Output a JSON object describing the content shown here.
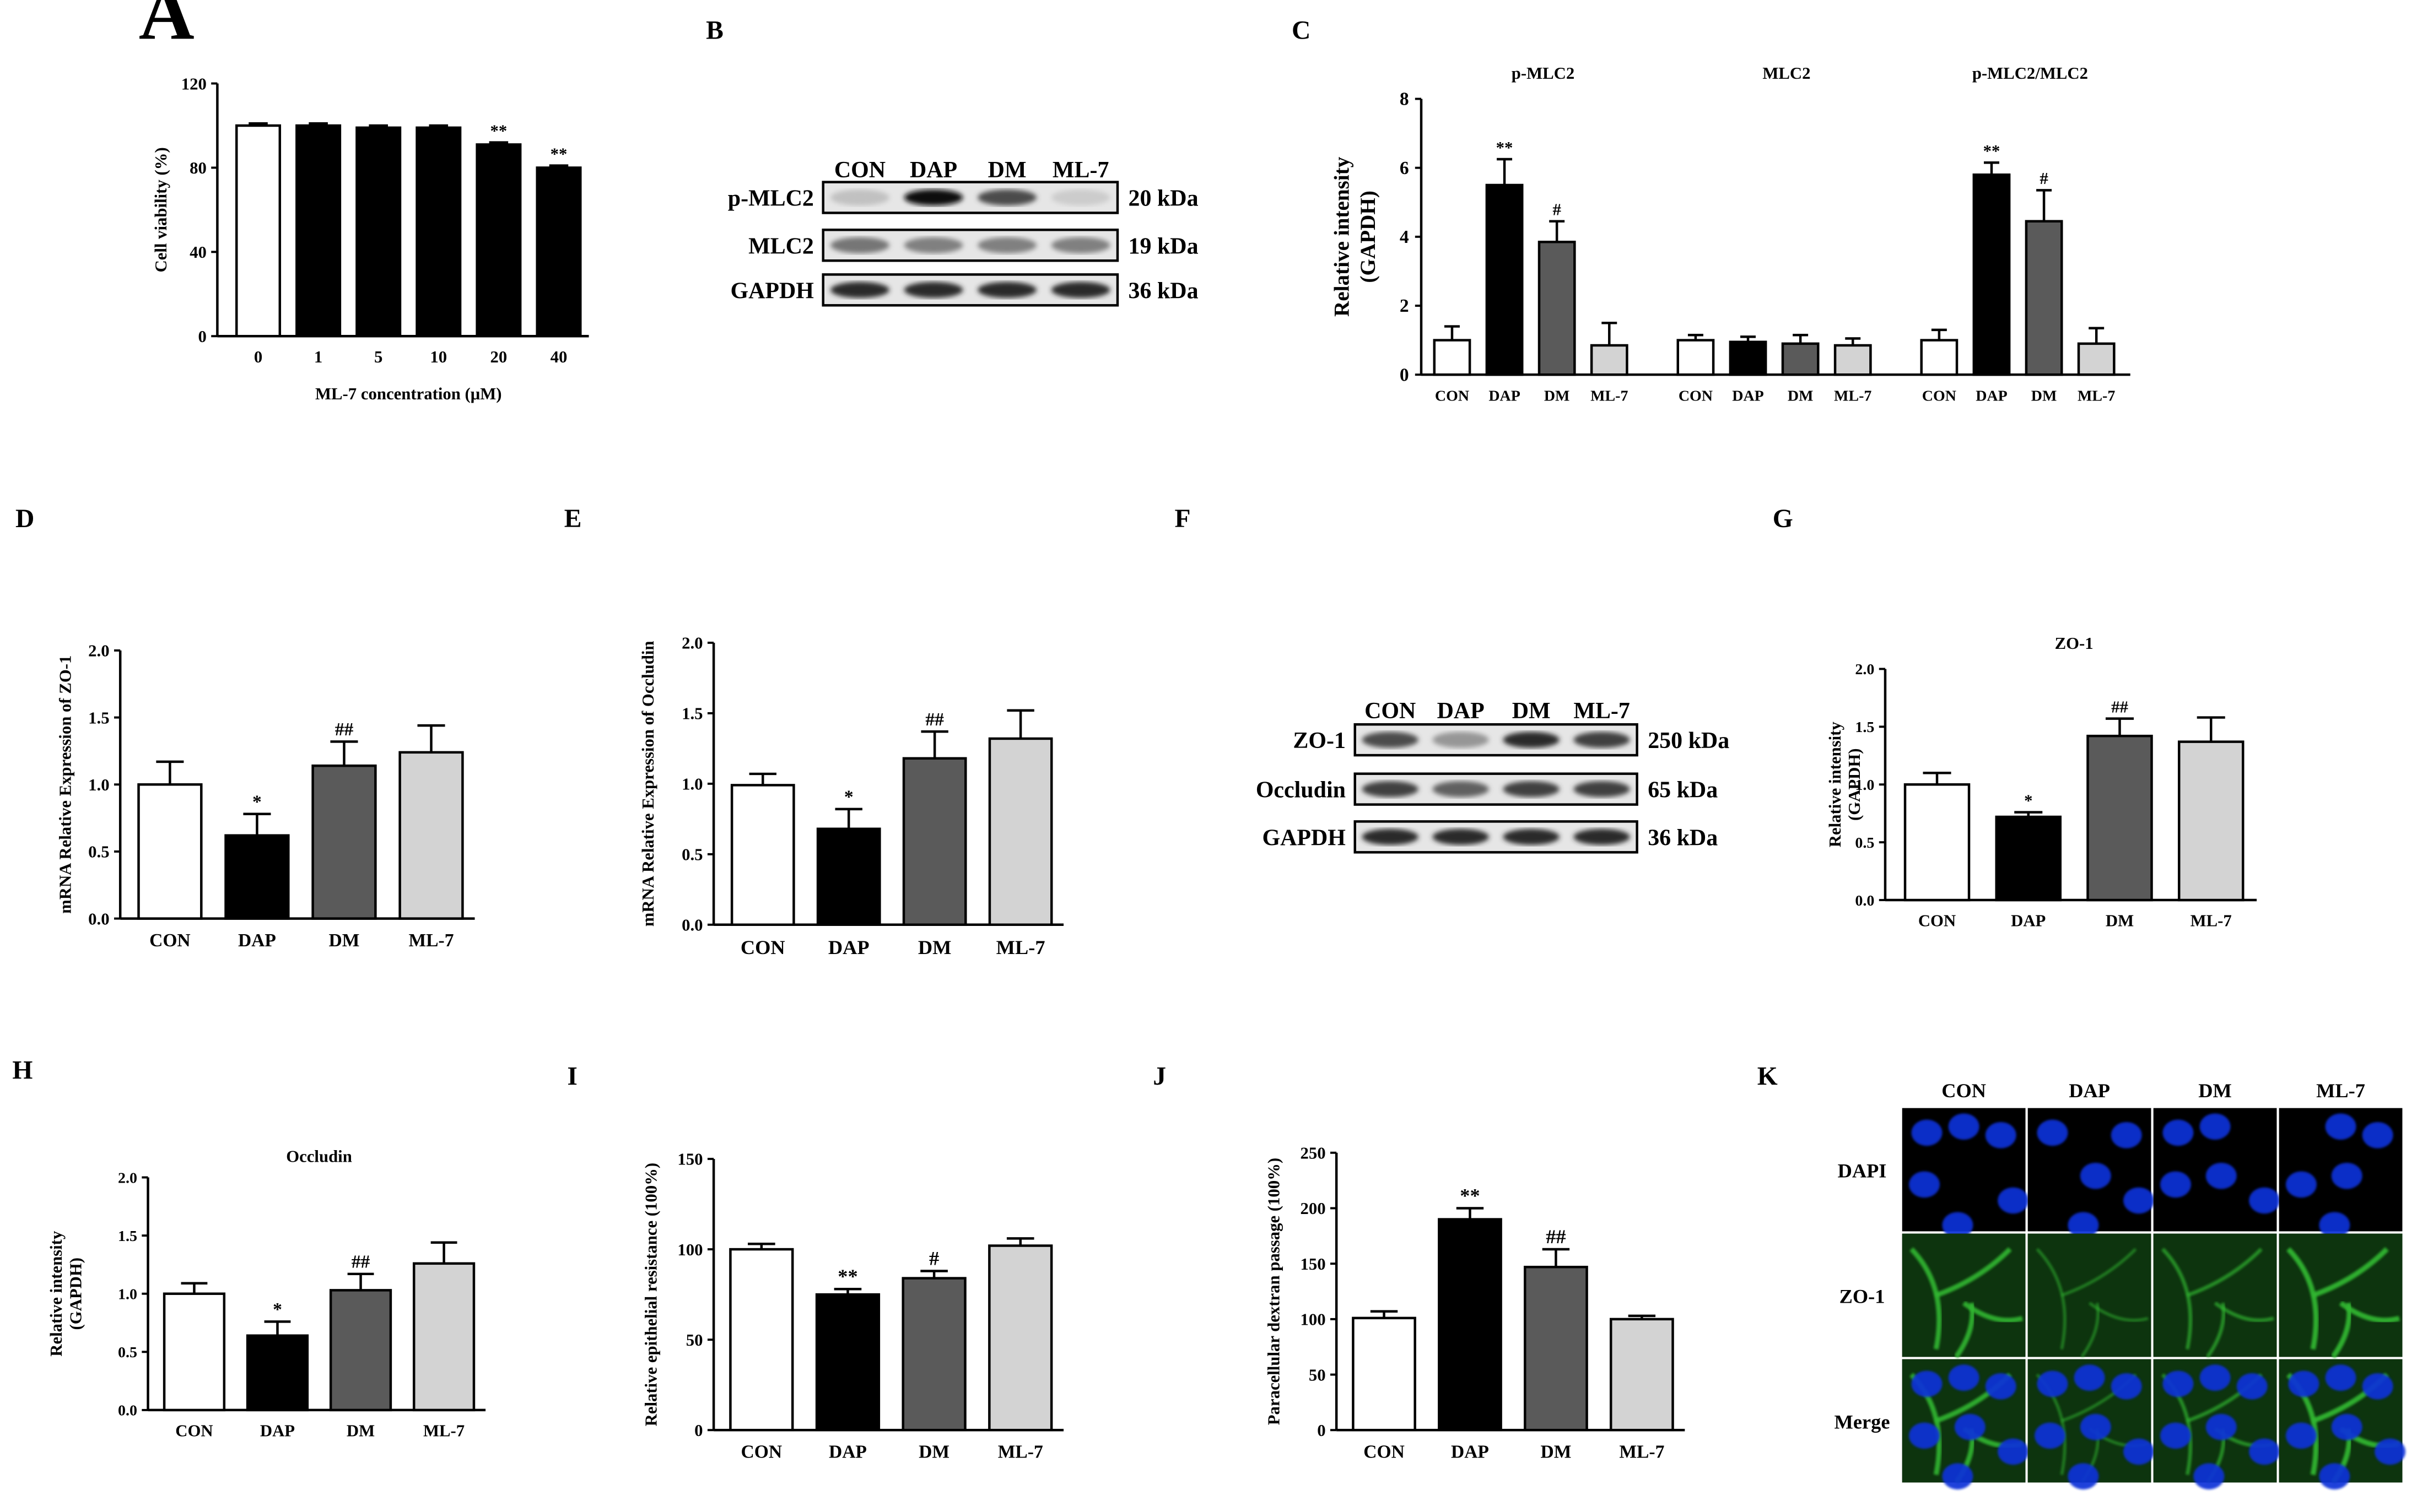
{
  "figure": {
    "panel_labels": [
      "A",
      "B",
      "C",
      "D",
      "E",
      "F",
      "G",
      "H",
      "I",
      "J",
      "K"
    ]
  },
  "colors": {
    "CON": "#ffffff",
    "DAP": "#000000",
    "DM": "#5a5a5a",
    "ML-7": "#d3d3d3",
    "dapi": "#1030d8",
    "zo1": "#30b830"
  },
  "chart_data": [
    {
      "id": "A",
      "type": "bar",
      "categories": [
        "0",
        "1",
        "5",
        "10",
        "20",
        "40"
      ],
      "values": [
        100,
        100,
        99,
        99,
        91,
        80
      ],
      "errors": [
        1,
        1,
        1,
        1,
        1,
        1
      ],
      "fills": [
        "#ffffff",
        "#000000",
        "#000000",
        "#000000",
        "#000000",
        "#000000"
      ],
      "annotations": [
        "",
        "",
        "",
        "",
        "**",
        "**"
      ],
      "ylim": [
        0,
        120
      ],
      "yticks": [
        "0",
        "40",
        "80",
        "120"
      ],
      "ylabel": "Cell viability (%)",
      "xlabel": "ML-7 concentration (μM)",
      "title": ""
    },
    {
      "id": "C",
      "type": "bar",
      "groups": [
        "p-MLC2",
        "MLC2",
        "p-MLC2/MLC2"
      ],
      "categories": [
        "CON",
        "DAP",
        "DM",
        "ML-7"
      ],
      "series": [
        {
          "group": "p-MLC2",
          "values": [
            1.0,
            5.5,
            3.85,
            0.85
          ],
          "errors": [
            0.4,
            0.75,
            0.6,
            0.65
          ],
          "annotations": [
            "",
            "**",
            "#",
            ""
          ]
        },
        {
          "group": "MLC2",
          "values": [
            1.0,
            0.95,
            0.9,
            0.85
          ],
          "errors": [
            0.15,
            0.15,
            0.25,
            0.2
          ],
          "annotations": [
            "",
            "",
            "",
            ""
          ]
        },
        {
          "group": "p-MLC2/MLC2",
          "values": [
            1.0,
            5.8,
            4.45,
            0.9
          ],
          "errors": [
            0.3,
            0.35,
            0.9,
            0.45
          ],
          "annotations": [
            "",
            "**",
            "#",
            ""
          ]
        }
      ],
      "ylim": [
        0,
        8
      ],
      "yticks": [
        "0",
        "2",
        "4",
        "6",
        "8"
      ],
      "ylabel_line1": "Relative intensity",
      "ylabel_line2": "(GAPDH)",
      "xlabel": "",
      "title": ""
    },
    {
      "id": "D",
      "type": "bar",
      "categories": [
        "CON",
        "DAP",
        "DM",
        "ML-7"
      ],
      "values": [
        1.0,
        0.62,
        1.14,
        1.24
      ],
      "errors": [
        0.17,
        0.16,
        0.18,
        0.2
      ],
      "annotations": [
        "",
        "*",
        "##",
        ""
      ],
      "ylim": [
        0,
        2.0
      ],
      "yticks": [
        "0.0",
        "0.5",
        "1.0",
        "1.5",
        "2.0"
      ],
      "ylabel": "mRNA Relative Expression of ZO-1",
      "xlabel": "",
      "title": ""
    },
    {
      "id": "E",
      "type": "bar",
      "categories": [
        "CON",
        "DAP",
        "DM",
        "ML-7"
      ],
      "values": [
        0.99,
        0.68,
        1.18,
        1.32
      ],
      "errors": [
        0.08,
        0.14,
        0.19,
        0.2
      ],
      "annotations": [
        "",
        "*",
        "##",
        ""
      ],
      "ylim": [
        0,
        2.0
      ],
      "yticks": [
        "0.0",
        "0.5",
        "1.0",
        "1.5",
        "2.0"
      ],
      "ylabel": "mRNA Relative Expression of Occludin",
      "xlabel": "",
      "title": ""
    },
    {
      "id": "G",
      "type": "bar",
      "categories": [
        "CON",
        "DAP",
        "DM",
        "ML-7"
      ],
      "values": [
        1.0,
        0.72,
        1.42,
        1.37
      ],
      "errors": [
        0.1,
        0.04,
        0.15,
        0.21
      ],
      "annotations": [
        "",
        "*",
        "##",
        ""
      ],
      "ylim": [
        0,
        2.0
      ],
      "yticks": [
        "0.0",
        "0.5",
        "1.0",
        "1.5",
        "2.0"
      ],
      "ylabel_line1": "Relative intensity",
      "ylabel_line2": "(GAPDH)",
      "xlabel": "",
      "title": "ZO-1"
    },
    {
      "id": "H",
      "type": "bar",
      "categories": [
        "CON",
        "DAP",
        "DM",
        "ML-7"
      ],
      "values": [
        1.0,
        0.64,
        1.03,
        1.26
      ],
      "errors": [
        0.09,
        0.12,
        0.14,
        0.18
      ],
      "annotations": [
        "",
        "*",
        "##",
        ""
      ],
      "ylim": [
        0,
        2.0
      ],
      "yticks": [
        "0.0",
        "0.5",
        "1.0",
        "1.5",
        "2.0"
      ],
      "ylabel_line1": "Relative intensity",
      "ylabel_line2": "(GAPDH)",
      "xlabel": "",
      "title": "Occludin"
    },
    {
      "id": "I",
      "type": "bar",
      "categories": [
        "CON",
        "DAP",
        "DM",
        "ML-7"
      ],
      "values": [
        100,
        75,
        84,
        102
      ],
      "errors": [
        3,
        3,
        4,
        4
      ],
      "annotations": [
        "",
        "**",
        "#",
        ""
      ],
      "ylim": [
        0,
        150
      ],
      "yticks": [
        "0",
        "50",
        "100",
        "150"
      ],
      "ylabel": "Relative epithelial resistance (100%)",
      "xlabel": "",
      "title": ""
    },
    {
      "id": "J",
      "type": "bar",
      "categories": [
        "CON",
        "DAP",
        "DM",
        "ML-7"
      ],
      "values": [
        101,
        190,
        147,
        100
      ],
      "errors": [
        6,
        10,
        16,
        3
      ],
      "annotations": [
        "",
        "**",
        "##",
        ""
      ],
      "ylim": [
        0,
        250
      ],
      "yticks": [
        "0",
        "50",
        "100",
        "150",
        "200",
        "250"
      ],
      "ylabel": "Paracellular dextran passage (100%)",
      "xlabel": "",
      "title": ""
    }
  ],
  "blot_B": {
    "lanes": [
      "CON",
      "DAP",
      "DM",
      "ML-7"
    ],
    "rows": [
      {
        "label": "p-MLC2",
        "size": "20 kDa",
        "intensity": [
          0.15,
          1.0,
          0.7,
          0.1
        ]
      },
      {
        "label": "MLC2",
        "size": "19 kDa",
        "intensity": [
          0.5,
          0.45,
          0.45,
          0.45
        ]
      },
      {
        "label": "GAPDH",
        "size": "36 kDa",
        "intensity": [
          0.85,
          0.85,
          0.85,
          0.85
        ]
      }
    ]
  },
  "blot_F": {
    "lanes": [
      "CON",
      "DAP",
      "DM",
      "ML-7"
    ],
    "rows": [
      {
        "label": "ZO-1",
        "size": "250 kDa",
        "intensity": [
          0.7,
          0.35,
          0.85,
          0.75
        ]
      },
      {
        "label": "Occludin",
        "size": "65 kDa",
        "intensity": [
          0.75,
          0.6,
          0.75,
          0.75
        ]
      },
      {
        "label": "GAPDH",
        "size": "36 kDa",
        "intensity": [
          0.85,
          0.85,
          0.85,
          0.85
        ]
      }
    ]
  },
  "microscopy_K": {
    "columns": [
      "CON",
      "DAP",
      "DM",
      "ML-7"
    ],
    "rows": [
      "DAPI",
      "ZO-1",
      "Merge"
    ]
  }
}
